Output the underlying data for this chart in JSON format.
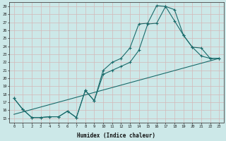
{
  "xlabel": "Humidex (Indice chaleur)",
  "bg_color": "#cce8e8",
  "grid_color": "#aacccc",
  "line_color": "#1a6b6b",
  "xlim": [
    -0.5,
    23.5
  ],
  "ylim": [
    14.5,
    29.5
  ],
  "xticks": [
    0,
    1,
    2,
    3,
    4,
    5,
    6,
    7,
    8,
    9,
    10,
    11,
    12,
    13,
    14,
    15,
    16,
    17,
    18,
    19,
    20,
    21,
    22,
    23
  ],
  "yticks": [
    15,
    16,
    17,
    18,
    19,
    20,
    21,
    22,
    23,
    24,
    25,
    26,
    27,
    28,
    29
  ],
  "line1_x": [
    0,
    1,
    2,
    3,
    4,
    5,
    6,
    7,
    8,
    9,
    10,
    11,
    12,
    13,
    14,
    15,
    16,
    17,
    18,
    19,
    20,
    21,
    22,
    23
  ],
  "line1_y": [
    17.5,
    16.1,
    15.1,
    15.1,
    15.2,
    15.2,
    15.9,
    15.1,
    18.5,
    17.2,
    21.0,
    22.0,
    22.5,
    23.8,
    26.8,
    26.9,
    29.1,
    29.0,
    27.2,
    25.4,
    23.9,
    23.8,
    22.5,
    22.5
  ],
  "line2_x": [
    0,
    1,
    2,
    3,
    4,
    5,
    6,
    7,
    8,
    9,
    10,
    11,
    12,
    13,
    14,
    15,
    16,
    17,
    18,
    19,
    20,
    21,
    22,
    23
  ],
  "line2_y": [
    17.5,
    16.1,
    15.1,
    15.1,
    15.2,
    15.2,
    15.9,
    15.1,
    18.5,
    17.2,
    20.5,
    21.0,
    21.5,
    22.0,
    23.5,
    26.8,
    26.9,
    29.0,
    28.6,
    25.4,
    23.9,
    22.8,
    22.5,
    22.5
  ],
  "line3_x": [
    0,
    23
  ],
  "line3_y": [
    15.5,
    22.5
  ]
}
